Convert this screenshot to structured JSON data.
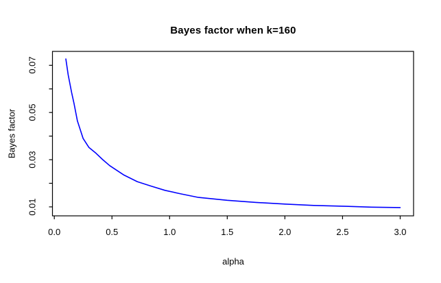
{
  "figure": {
    "background_color": "#FFFFFF",
    "text_color": "#000000"
  },
  "chart_data": {
    "type": "line",
    "title": "Bayes factor when k=160",
    "xlabel": "alpha",
    "ylabel": "Bayes factor",
    "xlim": [
      -0.016,
      3.116
    ],
    "ylim": [
      0.0062,
      0.0759
    ],
    "grid": false,
    "axis_color": "#000000",
    "x_ticks": {
      "values": [
        0.0,
        0.5,
        1.0,
        1.5,
        2.0,
        2.5,
        3.0
      ],
      "labels": [
        "0.0",
        "0.5",
        "1.0",
        "1.5",
        "2.0",
        "2.5",
        "3.0"
      ]
    },
    "y_ticks": {
      "values": [
        0.01,
        0.02,
        0.03,
        0.04,
        0.05,
        0.06,
        0.07
      ],
      "labeled_values": [
        0.01,
        0.03,
        0.05,
        0.07
      ],
      "labels": [
        "0.01",
        "0.03",
        "0.05",
        "0.07"
      ]
    },
    "series": [
      {
        "name": "Bayes factor",
        "color": "#0000FF",
        "x": [
          0.1,
          0.12,
          0.15,
          0.17,
          0.2,
          0.25,
          0.3,
          0.36,
          0.42,
          0.48,
          0.6,
          0.72,
          0.84,
          0.96,
          1.1,
          1.25,
          1.5,
          1.75,
          2.0,
          2.25,
          2.5,
          2.75,
          3.0
        ],
        "y": [
          0.0727,
          0.066,
          0.0585,
          0.054,
          0.0465,
          0.039,
          0.0352,
          0.0328,
          0.03,
          0.0275,
          0.0236,
          0.0207,
          0.0188,
          0.017,
          0.0155,
          0.014,
          0.0128,
          0.0119,
          0.0112,
          0.0106,
          0.0103,
          0.0099,
          0.0097
        ]
      }
    ]
  }
}
